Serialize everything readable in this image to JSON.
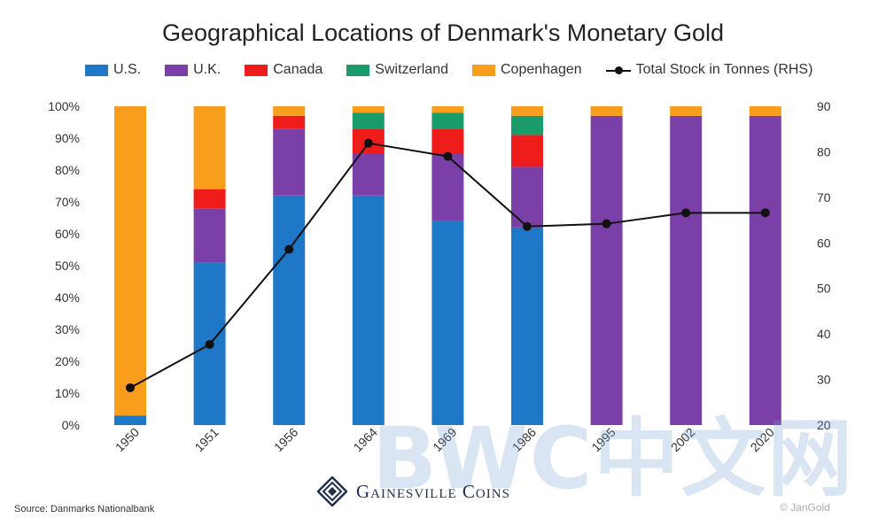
{
  "chart_data": {
    "type": "bar",
    "title": "Geographical Locations of Denmark's Monetary Gold",
    "categories": [
      "1950",
      "1951",
      "1956",
      "1964",
      "1969",
      "1986",
      "1995",
      "2002",
      "2020"
    ],
    "stacked": true,
    "series": [
      {
        "name": "U.S.",
        "color": "#1f77c8",
        "values": [
          3,
          51,
          72,
          72,
          64,
          62,
          0,
          0,
          0
        ]
      },
      {
        "name": "U.K.",
        "color": "#7b3fa8",
        "values": [
          0,
          17,
          21,
          13,
          21,
          19,
          97,
          97,
          97
        ]
      },
      {
        "name": "Canada",
        "color": "#ef1c1c",
        "values": [
          0,
          6,
          4,
          8,
          8,
          10,
          0,
          0,
          0
        ]
      },
      {
        "name": "Switzerland",
        "color": "#1a9c6a",
        "values": [
          0,
          0,
          0,
          5,
          5,
          6,
          0,
          0,
          0
        ]
      },
      {
        "name": "Copenhagen",
        "color": "#f99d1c",
        "values": [
          97,
          26,
          3,
          2,
          2,
          3,
          3,
          3,
          3
        ]
      }
    ],
    "line_series": {
      "name": "Total Stock in Tonnes (RHS)",
      "color": "#111111",
      "axis": "right",
      "values": [
        28.2,
        37.7,
        58.6,
        81.9,
        79.0,
        63.6,
        64.2,
        66.6,
        66.6
      ]
    },
    "y_left": {
      "min": 0,
      "max": 100,
      "ticks": [
        "0%",
        "10%",
        "20%",
        "30%",
        "40%",
        "50%",
        "60%",
        "70%",
        "80%",
        "90%",
        "100%"
      ]
    },
    "y_right": {
      "min": 20,
      "max": 90,
      "ticks": [
        "20",
        "30",
        "40",
        "50",
        "60",
        "70",
        "80",
        "90"
      ]
    },
    "grid": false,
    "legend_position": "top"
  },
  "source": "Source: Danmarks Nationalbank",
  "brand": "Gainesville Coins",
  "watermark": "BWC中文网",
  "credit": "© JanGold"
}
